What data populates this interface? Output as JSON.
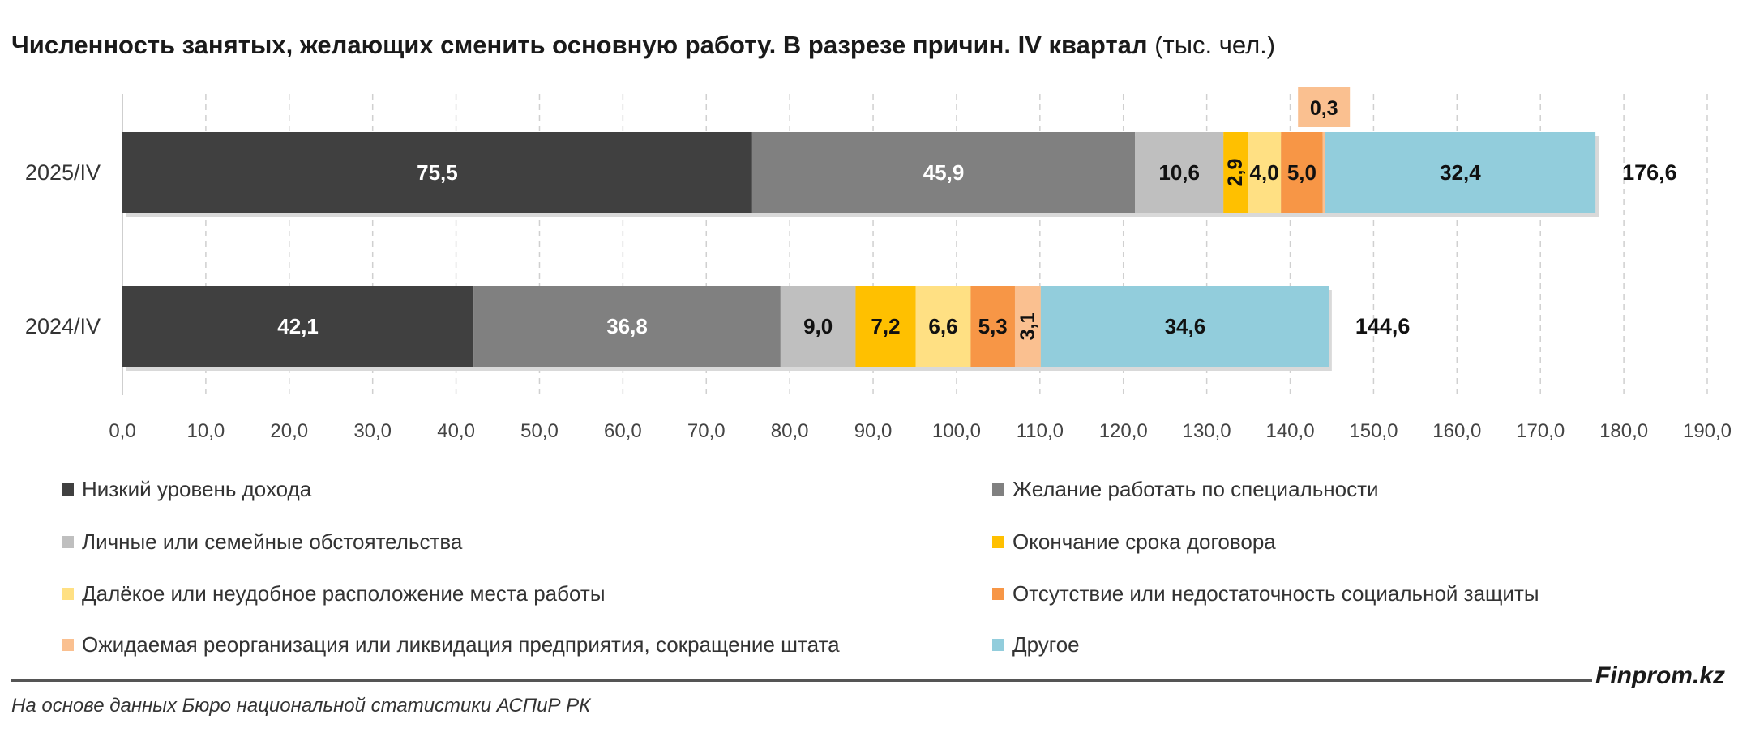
{
  "title": {
    "main": "Численность занятых, желающих сменить основную работу. В разрезе причин. IV квартал",
    "unit": "(тыс. чел.)"
  },
  "chart_data": {
    "type": "bar",
    "orientation": "horizontal",
    "stacked": true,
    "categories": [
      "2025/IV",
      "2024/IV"
    ],
    "series": [
      {
        "name": "Низкий уровень дохода",
        "color": "#404040",
        "values": [
          75.5,
          42.1
        ],
        "labels": [
          "75,5",
          "42,1"
        ]
      },
      {
        "name": "Желание работать по специальности",
        "color": "#808080",
        "values": [
          45.9,
          36.8
        ],
        "labels": [
          "45,9",
          "36,8"
        ]
      },
      {
        "name": "Личные или семейные обстоятельства",
        "color": "#bfbfbf",
        "values": [
          10.6,
          9.0
        ],
        "labels": [
          "10,6",
          "9,0"
        ]
      },
      {
        "name": "Окончание срока договора",
        "color": "#ffc000",
        "values": [
          2.9,
          7.2
        ],
        "labels": [
          "2,9",
          "7,2"
        ]
      },
      {
        "name": "Далёкое или неудобное расположение места работы",
        "color": "#ffe083",
        "values": [
          4.0,
          6.6
        ],
        "labels": [
          "4,0",
          "6,6"
        ]
      },
      {
        "name": "Отсутствие или недостаточность социальной защиты",
        "color": "#f79646",
        "values": [
          5.0,
          5.3
        ],
        "labels": [
          "5,0",
          "5,3"
        ]
      },
      {
        "name": "Ожидаемая реорганизация или ликвидация предприятия, сокращение штата",
        "color": "#fac090",
        "values": [
          0.3,
          3.1
        ],
        "labels": [
          "0,3",
          "3,1"
        ]
      },
      {
        "name": "Другое",
        "color": "#92cddc",
        "values": [
          32.4,
          34.6
        ],
        "labels": [
          "32,4",
          "34,6"
        ]
      }
    ],
    "totals": [
      176.6,
      144.6
    ],
    "total_labels": [
      "176,6",
      "144,6"
    ],
    "xlim": [
      0,
      190
    ],
    "x_ticks": [
      0,
      10,
      20,
      30,
      40,
      50,
      60,
      70,
      80,
      90,
      100,
      110,
      120,
      130,
      140,
      150,
      160,
      170,
      180,
      190
    ],
    "x_tick_labels": [
      "0,0",
      "10,0",
      "20,0",
      "30,0",
      "40,0",
      "50,0",
      "60,0",
      "70,0",
      "80,0",
      "90,0",
      "100,0",
      "110,0",
      "120,0",
      "130,0",
      "140,0",
      "150,0",
      "160,0",
      "170,0",
      "180,0",
      "190,0"
    ],
    "grid": true,
    "legend_position": "bottom"
  },
  "legend": [
    {
      "label": "Низкий уровень дохода",
      "color": "#404040"
    },
    {
      "label": "Желание работать по специальности",
      "color": "#808080"
    },
    {
      "label": "Личные или семейные обстоятельства",
      "color": "#bfbfbf"
    },
    {
      "label": "Окончание срока договора",
      "color": "#ffc000"
    },
    {
      "label": "Далёкое или неудобное расположение места работы",
      "color": "#ffe083"
    },
    {
      "label": "Отсутствие или недостаточность социальной защиты",
      "color": "#f79646"
    },
    {
      "label": "Ожидаемая реорганизация или ликвидация предприятия, сокращение штата",
      "color": "#fac090"
    },
    {
      "label": "Другое",
      "color": "#92cddc"
    }
  ],
  "source": "На основе данных Бюро национальной статистики АСПиР РК",
  "brand": "Finprom.kz"
}
